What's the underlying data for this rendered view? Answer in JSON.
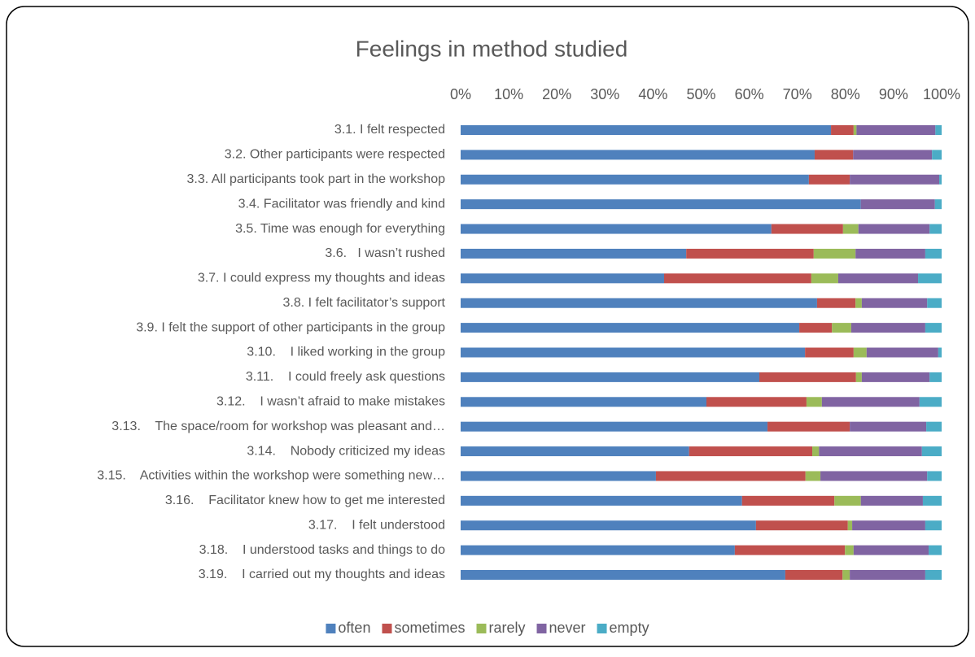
{
  "chart_data": {
    "type": "stacked_barh",
    "title": "Feelings in method studied",
    "categories": [
      "3.1. I felt respected",
      "3.2. Other participants were respected",
      "3.3. All participants took part in the workshop",
      "3.4. Facilitator was friendly and kind",
      "3.5. Time was enough for everything",
      "3.6.   I wasn’t rushed",
      "3.7. I could express my thoughts and ideas",
      "3.8. I felt facilitator’s support",
      "3.9. I felt the support of other participants in the group",
      "3.10.    I liked working in the group",
      "3.11.    I could freely ask questions",
      "3.12.    I wasn’t afraid to make mistakes",
      "3.13.    The space/room for workshop was pleasant and…",
      "3.14.    Nobody criticized my ideas",
      "3.15.    Activities within the workshop were something new…",
      "3.16.    Facilitator knew how to get me interested",
      "3.17.    I felt understood",
      "3.18.    I understood tasks and things to do",
      "3.19.    I carried out my thoughts and ideas"
    ],
    "series": [
      {
        "name": "often",
        "color": "#4f81bd",
        "values": [
          77,
          73.6,
          72.4,
          83.2,
          64.6,
          46.9,
          42.3,
          74.1,
          70.4,
          71.6,
          62.1,
          51.1,
          63.8,
          47.5,
          40.6,
          58.5,
          61.4,
          57,
          67.5
        ]
      },
      {
        "name": "sometimes",
        "color": "#c0504d",
        "values": [
          4.7,
          8,
          8.5,
          0,
          14.9,
          26.5,
          30.6,
          8,
          6.8,
          10.1,
          20.1,
          20.8,
          17.1,
          25.6,
          31.1,
          19.2,
          19.1,
          22.9,
          11.9
        ]
      },
      {
        "name": "rarely",
        "color": "#9bbb59",
        "values": [
          0.6,
          0,
          0,
          0,
          3.2,
          8.7,
          5.6,
          1.3,
          4,
          2.7,
          1.2,
          3.2,
          0,
          1.4,
          3.1,
          5.5,
          0.9,
          1.8,
          1.5
        ]
      },
      {
        "name": "never",
        "color": "#8064a2",
        "values": [
          16.4,
          16.4,
          18.6,
          15.4,
          14.8,
          14.5,
          16.6,
          13.6,
          15.4,
          14.9,
          14.1,
          20.3,
          15.9,
          21.4,
          22.2,
          12.9,
          15.2,
          15.6,
          15.7
        ]
      },
      {
        "name": "empty",
        "color": "#4bacc6",
        "values": [
          1.3,
          2,
          0.5,
          1.4,
          2.5,
          3.4,
          4.9,
          3,
          3.4,
          0.7,
          2.5,
          4.6,
          3.2,
          4.1,
          3,
          3.9,
          3.4,
          2.7,
          3.4
        ]
      }
    ],
    "xlim": [
      0,
      100
    ],
    "xticks": [
      {
        "value": 0,
        "label": "0%"
      },
      {
        "value": 10,
        "label": "10%"
      },
      {
        "value": 20,
        "label": "20%"
      },
      {
        "value": 30,
        "label": "30%"
      },
      {
        "value": 40,
        "label": "40%"
      },
      {
        "value": 50,
        "label": "50%"
      },
      {
        "value": 60,
        "label": "60%"
      },
      {
        "value": 70,
        "label": "70%"
      },
      {
        "value": 80,
        "label": "80%"
      },
      {
        "value": 90,
        "label": "90%"
      },
      {
        "value": 100,
        "label": "100%"
      }
    ],
    "legend": "bottom"
  }
}
